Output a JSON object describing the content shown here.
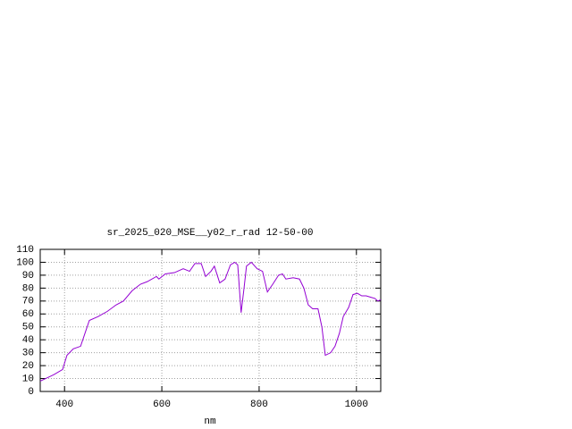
{
  "chart_data": {
    "type": "line",
    "title": "sr_2025_020_MSE__y02_r_rad 12-50-00",
    "x_label": "nm",
    "x": [
      350,
      378,
      396,
      405,
      418,
      433,
      442,
      451,
      469,
      488,
      506,
      521,
      539,
      556,
      570,
      589,
      594,
      607,
      626,
      644,
      657,
      668,
      681,
      690,
      701,
      708,
      719,
      730,
      741,
      750,
      756,
      763,
      769,
      774,
      784,
      796,
      807,
      817,
      828,
      840,
      848,
      855,
      870,
      883,
      892,
      901,
      910,
      921,
      929,
      936,
      947,
      956,
      965,
      973,
      984,
      993,
      1002,
      1011,
      1020,
      1029,
      1038,
      1044,
      1050
    ],
    "values": [
      8,
      13,
      17,
      28,
      33,
      35,
      45,
      55,
      58,
      62,
      67,
      70,
      78,
      83,
      85,
      89,
      87,
      91,
      92,
      95,
      93,
      99,
      99,
      89,
      93,
      97,
      84,
      87,
      98,
      100,
      98,
      61,
      80,
      97,
      100,
      95,
      93,
      77,
      83,
      90,
      91,
      87,
      88,
      87,
      80,
      67,
      64,
      64,
      50,
      28,
      30,
      35,
      45,
      58,
      65,
      75,
      76,
      74,
      74,
      73,
      72,
      70,
      71
    ],
    "color": "#9400d3",
    "xlim": [
      350,
      1050
    ],
    "xticks": [
      400,
      600,
      800,
      1000
    ],
    "ylim": [
      0,
      110
    ],
    "yticks": [
      0,
      10,
      20,
      30,
      40,
      50,
      60,
      70,
      80,
      90,
      100,
      110
    ],
    "grid": true
  }
}
